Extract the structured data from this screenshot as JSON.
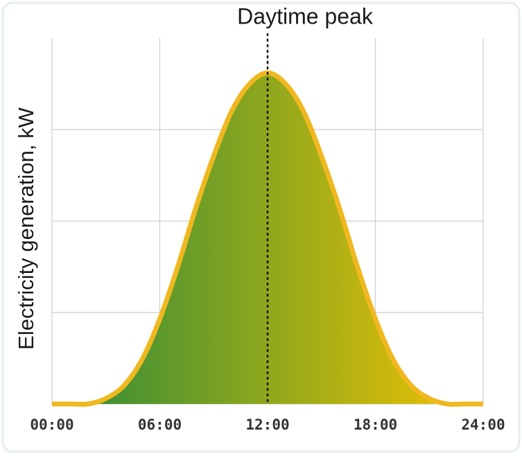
{
  "chart_data": {
    "type": "area",
    "annotation": {
      "text": "Daytime peak",
      "x": 12
    },
    "y_label": "Electricity generation, kW",
    "x": [
      0,
      1,
      2,
      3,
      4,
      5,
      6,
      7,
      8,
      9,
      10,
      11,
      12,
      13,
      14,
      15,
      16,
      17,
      18,
      19,
      20,
      21,
      22,
      23,
      24
    ],
    "values": [
      0,
      0,
      0,
      0.06,
      0.2,
      0.48,
      0.93,
      1.5,
      2.14,
      2.71,
      3.2,
      3.5,
      3.62,
      3.5,
      3.2,
      2.71,
      2.14,
      1.5,
      0.93,
      0.48,
      0.2,
      0.06,
      0,
      0,
      0
    ],
    "xlim": [
      0,
      24
    ],
    "xticks": [
      {
        "value": 0,
        "label": "00:00"
      },
      {
        "value": 6,
        "label": "06:00"
      },
      {
        "value": 12,
        "label": "12:00"
      },
      {
        "value": 18,
        "label": "18:00"
      },
      {
        "value": 24,
        "label": "24:00"
      }
    ],
    "ylim": [
      0,
      4
    ],
    "yticks": [
      0,
      1,
      2,
      3
    ],
    "grid": true,
    "color": "#f0b820",
    "gradient": [
      "#2a8a3a",
      "#f5c400"
    ]
  }
}
